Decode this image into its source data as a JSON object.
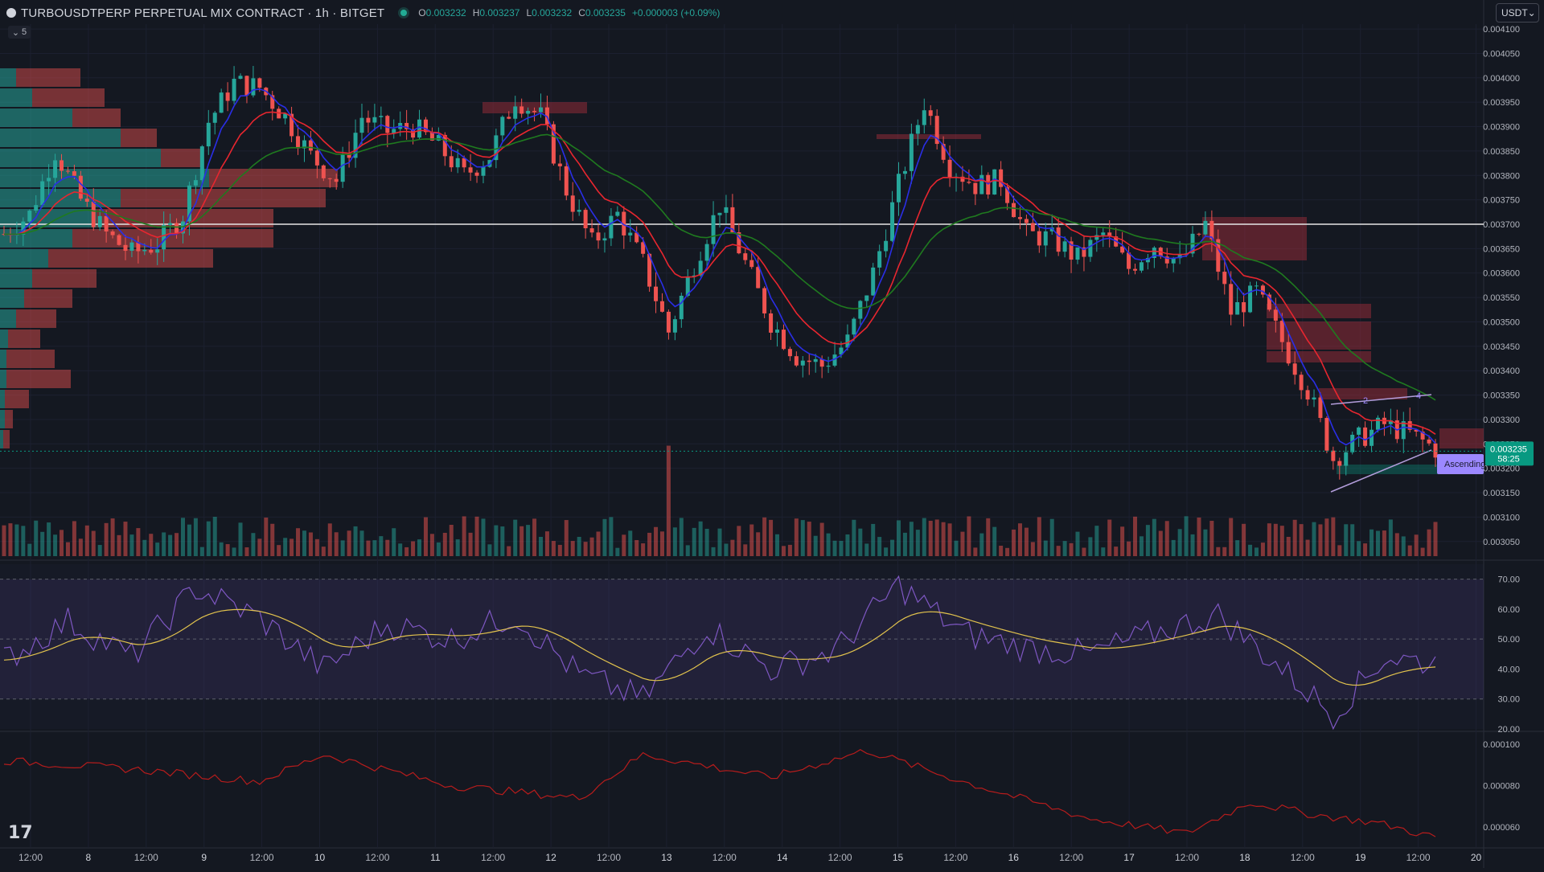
{
  "header": {
    "symbol_title": "TURBOUSDTPERP PERPETUAL MIX CONTRACT · 1h · BITGET",
    "ohlc": {
      "o_label": "O",
      "o_value": "0.003232",
      "h_label": "H",
      "h_value": "0.003237",
      "l_label": "L",
      "l_value": "0.003232",
      "c_label": "C",
      "c_value": "0.003235",
      "change": "+0.000003 (+0.09%)"
    },
    "collapse_count": "5",
    "currency_select": "USDT",
    "status_color": "#22ab94"
  },
  "icons": [
    "symbol-logo-icon",
    "market-status-icon",
    "chevron-down-icon",
    "tradingview-logo-icon"
  ],
  "colors": {
    "background": "#141821",
    "bull": "#26a69a",
    "bear": "#ef5350",
    "ema_fast": "#2a2ee6",
    "ema_mid": "#e8262f",
    "ema_slow": "#1f7a1f",
    "rsi": "#7e57c2",
    "rsi_ma": "#e2c34d",
    "lower_line": "#b71c1c",
    "current_price_tag": "#089981",
    "pattern_label": "#9c88ff"
  },
  "price_axis": {
    "labels": [
      "0.004100",
      "0.004050",
      "0.004000",
      "0.003950",
      "0.003900",
      "0.003850",
      "0.003800",
      "0.003750",
      "0.003700",
      "0.003650",
      "0.003600",
      "0.003550",
      "0.003500",
      "0.003450",
      "0.003400",
      "0.003350",
      "0.003300",
      "0.003250",
      "0.003200",
      "0.003150",
      "0.003100",
      "0.003050"
    ],
    "current_price": "0.003235",
    "countdown": "58:25"
  },
  "time_axis": {
    "labels": [
      "12:00",
      "8",
      "12:00",
      "9",
      "12:00",
      "10",
      "12:00",
      "11",
      "12:00",
      "12",
      "12:00",
      "13",
      "12:00",
      "14",
      "12:00",
      "15",
      "12:00",
      "16",
      "12:00",
      "17",
      "12:00",
      "18",
      "12:00",
      "19",
      "12:00",
      "20"
    ]
  },
  "rsi_axis": {
    "labels": [
      "70.00",
      "60.00",
      "50.00",
      "40.00",
      "30.00",
      "20.00"
    ]
  },
  "lower_axis": {
    "labels": [
      "0.000100",
      "0.000080",
      "0.000060"
    ]
  },
  "annotations": {
    "pattern_label": "Ascending",
    "wave_labels": [
      "2",
      "4"
    ]
  },
  "chart_data": {
    "type": "candlestick",
    "interval": "1h",
    "y_range": [
      0.00302,
      0.00411
    ],
    "support_line": 0.0037,
    "close_path": [
      {
        "t": 0,
        "price": 0.00368
      },
      {
        "t": 4,
        "price": 0.00372
      },
      {
        "t": 8,
        "price": 0.00385
      },
      {
        "t": 12,
        "price": 0.00375
      },
      {
        "t": 16,
        "price": 0.00368
      },
      {
        "t": 20,
        "price": 0.00364
      },
      {
        "t": 24,
        "price": 0.00366
      },
      {
        "t": 28,
        "price": 0.00372
      },
      {
        "t": 32,
        "price": 0.00391
      },
      {
        "t": 36,
        "price": 0.00399
      },
      {
        "t": 40,
        "price": 0.00398
      },
      {
        "t": 44,
        "price": 0.00392
      },
      {
        "t": 48,
        "price": 0.00384
      },
      {
        "t": 52,
        "price": 0.00379
      },
      {
        "t": 56,
        "price": 0.00392
      },
      {
        "t": 60,
        "price": 0.00389
      },
      {
        "t": 64,
        "price": 0.0039
      },
      {
        "t": 68,
        "price": 0.00386
      },
      {
        "t": 72,
        "price": 0.0038
      },
      {
        "t": 76,
        "price": 0.00384
      },
      {
        "t": 80,
        "price": 0.00396
      },
      {
        "t": 84,
        "price": 0.00392
      },
      {
        "t": 88,
        "price": 0.00377
      },
      {
        "t": 92,
        "price": 0.00366
      },
      {
        "t": 96,
        "price": 0.00372
      },
      {
        "t": 100,
        "price": 0.00362
      },
      {
        "t": 104,
        "price": 0.00348
      },
      {
        "t": 108,
        "price": 0.00362
      },
      {
        "t": 112,
        "price": 0.00374
      },
      {
        "t": 116,
        "price": 0.00362
      },
      {
        "t": 120,
        "price": 0.0035
      },
      {
        "t": 124,
        "price": 0.00343
      },
      {
        "t": 128,
        "price": 0.00341
      },
      {
        "t": 132,
        "price": 0.00346
      },
      {
        "t": 136,
        "price": 0.0036
      },
      {
        "t": 140,
        "price": 0.00378
      },
      {
        "t": 144,
        "price": 0.00395
      },
      {
        "t": 148,
        "price": 0.00382
      },
      {
        "t": 152,
        "price": 0.00378
      },
      {
        "t": 156,
        "price": 0.00379
      },
      {
        "t": 160,
        "price": 0.00368
      },
      {
        "t": 164,
        "price": 0.00367
      },
      {
        "t": 168,
        "price": 0.00363
      },
      {
        "t": 172,
        "price": 0.00368
      },
      {
        "t": 176,
        "price": 0.00361
      },
      {
        "t": 180,
        "price": 0.00366
      },
      {
        "t": 184,
        "price": 0.00362
      },
      {
        "t": 188,
        "price": 0.0037
      },
      {
        "t": 192,
        "price": 0.00352
      },
      {
        "t": 196,
        "price": 0.00356
      },
      {
        "t": 200,
        "price": 0.00346
      },
      {
        "t": 204,
        "price": 0.00336
      },
      {
        "t": 208,
        "price": 0.00322
      },
      {
        "t": 212,
        "price": 0.00326
      },
      {
        "t": 216,
        "price": 0.00329
      },
      {
        "t": 220,
        "price": 0.00327
      },
      {
        "t": 224,
        "price": 0.00324
      }
    ],
    "rsi_path": [
      {
        "t": 0,
        "value": 43
      },
      {
        "t": 10,
        "value": 56
      },
      {
        "t": 20,
        "value": 44
      },
      {
        "t": 30,
        "value": 67
      },
      {
        "t": 40,
        "value": 57
      },
      {
        "t": 50,
        "value": 40
      },
      {
        "t": 60,
        "value": 55
      },
      {
        "t": 70,
        "value": 50
      },
      {
        "t": 80,
        "value": 58
      },
      {
        "t": 90,
        "value": 38
      },
      {
        "t": 100,
        "value": 30
      },
      {
        "t": 110,
        "value": 54
      },
      {
        "t": 120,
        "value": 40
      },
      {
        "t": 130,
        "value": 46
      },
      {
        "t": 140,
        "value": 68
      },
      {
        "t": 150,
        "value": 52
      },
      {
        "t": 160,
        "value": 47
      },
      {
        "t": 170,
        "value": 45
      },
      {
        "t": 180,
        "value": 52
      },
      {
        "t": 190,
        "value": 58
      },
      {
        "t": 200,
        "value": 40
      },
      {
        "t": 208,
        "value": 25
      },
      {
        "t": 216,
        "value": 44
      },
      {
        "t": 224,
        "value": 42
      }
    ],
    "lower_path": [
      {
        "t": 0,
        "value": 9.2e-05
      },
      {
        "t": 20,
        "value": 8.8e-05
      },
      {
        "t": 40,
        "value": 8.2e-05
      },
      {
        "t": 50,
        "value": 9.5e-05
      },
      {
        "t": 70,
        "value": 8e-05
      },
      {
        "t": 90,
        "value": 7.4e-05
      },
      {
        "t": 100,
        "value": 9.5e-05
      },
      {
        "t": 120,
        "value": 8.4e-05
      },
      {
        "t": 135,
        "value": 9.7e-05
      },
      {
        "t": 150,
        "value": 8.2e-05
      },
      {
        "t": 170,
        "value": 6.4e-05
      },
      {
        "t": 185,
        "value": 5.7e-05
      },
      {
        "t": 195,
        "value": 7.2e-05
      },
      {
        "t": 205,
        "value": 6.6e-05
      },
      {
        "t": 215,
        "value": 6.2e-05
      },
      {
        "t": 224,
        "value": 5.5e-05
      }
    ]
  }
}
